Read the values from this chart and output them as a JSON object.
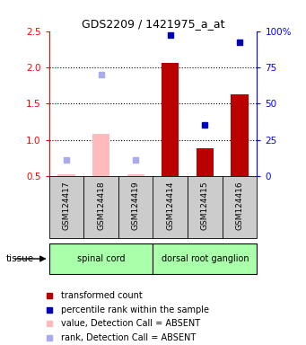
{
  "title": "GDS2209 / 1421975_a_at",
  "samples": [
    "GSM124417",
    "GSM124418",
    "GSM124419",
    "GSM124414",
    "GSM124415",
    "GSM124416"
  ],
  "bar_values": [
    0.52,
    1.08,
    0.52,
    2.06,
    0.88,
    1.63
  ],
  "bar_absent": [
    true,
    true,
    true,
    false,
    false,
    false
  ],
  "dot_values": [
    0.72,
    1.9,
    0.72,
    2.44,
    1.2,
    2.34
  ],
  "dot_absent": [
    true,
    true,
    true,
    false,
    false,
    false
  ],
  "ylim_left": [
    0.5,
    2.5
  ],
  "yticks_left": [
    0.5,
    1.0,
    1.5,
    2.0,
    2.5
  ],
  "yticks_right": [
    0,
    25,
    50,
    75,
    100
  ],
  "yticklabels_right": [
    "0",
    "25",
    "50",
    "75",
    "100%"
  ],
  "hlines": [
    1.0,
    1.5,
    2.0
  ],
  "bar_width": 0.5,
  "group_bg": "#aaffaa",
  "group_green": "#66dd66",
  "sample_bg": "#cccccc",
  "absent_bar_color": "#ffbbbb",
  "absent_dot_color": "#aaaaee",
  "present_bar_color": "#bb0000",
  "present_dot_color": "#0000bb",
  "group_defs": [
    {
      "label": "spinal cord",
      "start": 0,
      "end": 2
    },
    {
      "label": "dorsal root ganglion",
      "start": 3,
      "end": 5
    }
  ],
  "legend_items": [
    {
      "color": "#bb0000",
      "label": "transformed count"
    },
    {
      "color": "#0000bb",
      "label": "percentile rank within the sample"
    },
    {
      "color": "#ffbbbb",
      "label": "value, Detection Call = ABSENT"
    },
    {
      "color": "#aaaaee",
      "label": "rank, Detection Call = ABSENT"
    }
  ]
}
